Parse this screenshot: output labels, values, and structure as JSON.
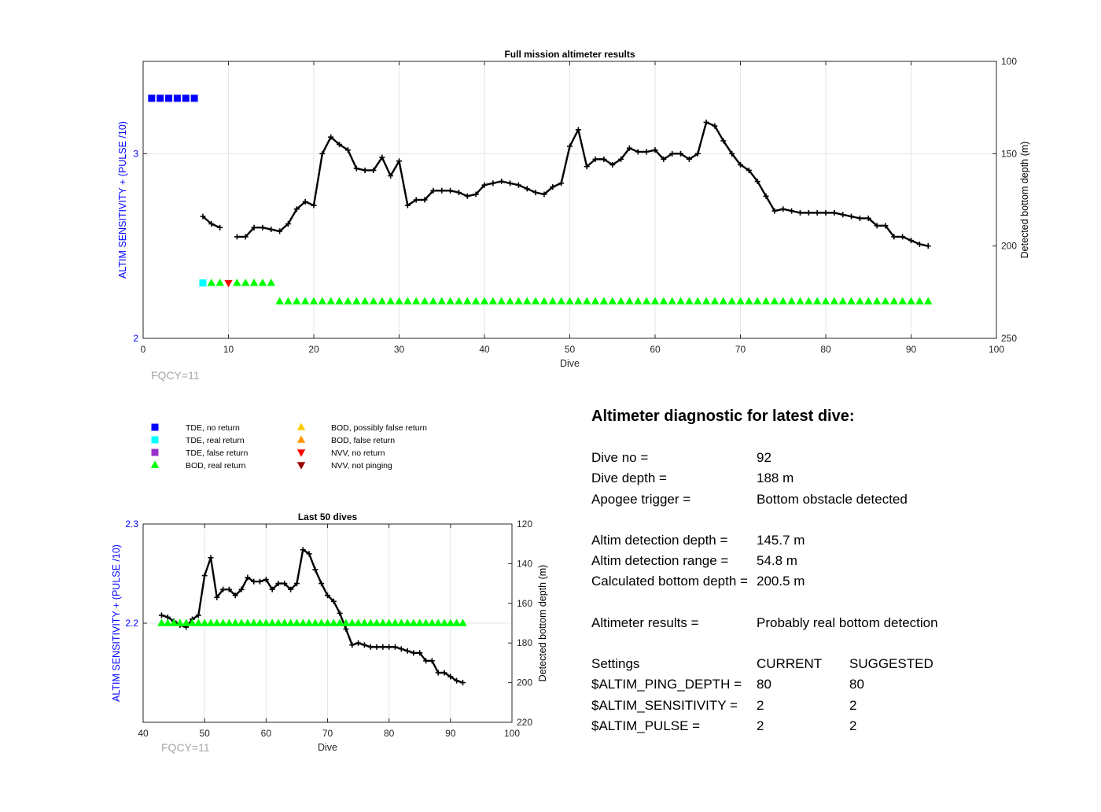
{
  "chart_data": [
    {
      "type": "line",
      "title": "Full mission altimeter results",
      "xlabel": "Dive",
      "ylabel_left": "ALTIM SENSITIVITY + (PULSE /10)",
      "ylabel_right": "Detected bottom depth (m)",
      "xlim": [
        0,
        100
      ],
      "ylim_left": [
        2,
        3.5
      ],
      "ylim_right_reversed": [
        100,
        250
      ],
      "xticks": [
        "0",
        "10",
        "20",
        "30",
        "40",
        "50",
        "60",
        "70",
        "80",
        "90",
        "100"
      ],
      "yticks_left": [
        "2",
        "3"
      ],
      "yticks_right": [
        "100",
        "150",
        "200",
        "250"
      ],
      "grid": true,
      "annotation": "FQCY=11",
      "series": [
        {
          "kind": "depth-line",
          "x": [
            7,
            8,
            9,
            11,
            12,
            13,
            14,
            15,
            16,
            17,
            18,
            19,
            20,
            21,
            22,
            23,
            24,
            25,
            26,
            27,
            28,
            29,
            30,
            31,
            32,
            33,
            34,
            35,
            36,
            37,
            38,
            39,
            40,
            41,
            42,
            43,
            44,
            45,
            46,
            47,
            48,
            49,
            50,
            51,
            52,
            53,
            54,
            55,
            56,
            57,
            58,
            59,
            60,
            61,
            62,
            63,
            64,
            65,
            66,
            67,
            68,
            69,
            70,
            71,
            72,
            73,
            74,
            75,
            76,
            77,
            78,
            79,
            80,
            81,
            82,
            83,
            84,
            85,
            86,
            87,
            88,
            89,
            90,
            91,
            92
          ],
          "y": [
            184,
            188,
            190,
            195,
            195,
            190,
            190,
            191,
            192,
            188,
            180,
            176,
            178,
            150,
            141,
            145,
            148,
            158,
            159,
            159,
            152,
            162,
            154,
            178,
            175,
            175,
            170,
            170,
            170,
            171,
            173,
            172,
            167,
            166,
            165,
            166,
            167,
            169,
            171,
            172,
            168,
            166,
            146,
            137,
            157,
            153,
            153,
            156,
            153,
            147,
            149,
            149,
            148,
            153,
            150,
            150,
            153,
            150,
            133,
            135,
            143,
            150,
            156,
            159,
            165,
            173,
            181,
            180,
            181,
            182,
            182,
            182,
            182,
            182,
            183,
            184,
            185,
            185,
            189,
            189,
            195,
            195,
            197,
            199,
            200
          ]
        },
        {
          "kind": "tde-no-return",
          "x": [
            1,
            2,
            3,
            4,
            5,
            6
          ],
          "y": [
            3.3,
            3.3,
            3.3,
            3.3,
            3.3,
            3.3
          ]
        },
        {
          "kind": "tde-real-return",
          "x": [
            7
          ],
          "y": [
            2.3
          ]
        },
        {
          "kind": "bod-real-return",
          "x": [
            8,
            9,
            11,
            12,
            13,
            14,
            15
          ],
          "y": [
            2.3,
            2.3,
            2.3,
            2.3,
            2.3,
            2.3,
            2.3
          ]
        },
        {
          "kind": "nvv-no-return",
          "x": [
            10
          ],
          "y": [
            2.3
          ]
        },
        {
          "kind": "bod-real-return",
          "x_range": [
            16,
            92
          ],
          "y": 2.2
        }
      ]
    },
    {
      "type": "line",
      "title": "Last 50 dives",
      "xlabel": "Dive",
      "ylabel_left": "ALTIM SENSITIVITY + (PULSE /10)",
      "ylabel_right": "Detected bottom depth (m)",
      "xlim": [
        40,
        100
      ],
      "ylim_left": [
        2.1,
        2.3
      ],
      "ylim_right_reversed": [
        120,
        220
      ],
      "xticks": [
        "40",
        "50",
        "60",
        "70",
        "80",
        "90",
        "100"
      ],
      "yticks_left": [
        "2.2",
        "2.3"
      ],
      "yticks_right": [
        "120",
        "140",
        "160",
        "180",
        "200",
        "220"
      ],
      "grid": true,
      "annotation": "FQCY=11",
      "series": [
        {
          "kind": "depth-line",
          "x": [
            43,
            44,
            45,
            46,
            47,
            48,
            49,
            50,
            51,
            52,
            53,
            54,
            55,
            56,
            57,
            58,
            59,
            60,
            61,
            62,
            63,
            64,
            65,
            66,
            67,
            68,
            69,
            70,
            71,
            72,
            73,
            74,
            75,
            76,
            77,
            78,
            79,
            80,
            81,
            82,
            83,
            84,
            85,
            86,
            87,
            88,
            89,
            90,
            91,
            92
          ],
          "y": [
            166,
            167,
            169,
            171,
            172,
            168,
            166,
            146,
            137,
            157,
            153,
            153,
            156,
            153,
            147,
            149,
            149,
            148,
            153,
            150,
            150,
            153,
            150,
            133,
            135,
            143,
            150,
            156,
            159,
            165,
            173,
            181,
            180,
            181,
            182,
            182,
            182,
            182,
            182,
            183,
            184,
            185,
            185,
            189,
            189,
            195,
            195,
            197,
            199,
            200
          ]
        },
        {
          "kind": "bod-real-return",
          "x_range": [
            43,
            92
          ],
          "y": 2.2
        }
      ]
    }
  ],
  "legend": [
    {
      "label": "TDE, no return",
      "marker": "square",
      "color": "#0000ff"
    },
    {
      "label": "TDE, real return",
      "marker": "square",
      "color": "#00ffff"
    },
    {
      "label": "TDE, false return",
      "marker": "square",
      "color": "#9933cc"
    },
    {
      "label": "BOD, real return",
      "marker": "triangle-up",
      "color": "#00ff00"
    },
    {
      "label": "BOD, possibly false return",
      "marker": "triangle-up",
      "color": "#ffcc00"
    },
    {
      "label": "BOD, false return",
      "marker": "triangle-up",
      "color": "#ff9900"
    },
    {
      "label": "NVV, no return",
      "marker": "triangle-down",
      "color": "#ff0000"
    },
    {
      "label": "NVV, not pinging",
      "marker": "triangle-down",
      "color": "#990000"
    }
  ],
  "diagnostic": {
    "title": "Altimeter diagnostic for latest dive:",
    "dive_no_label": "Dive no =",
    "dive_no": "92",
    "dive_depth_label": "Dive depth =",
    "dive_depth": "188 m",
    "apogee_label": "Apogee trigger =",
    "apogee": "Bottom obstacle detected",
    "detect_depth_label": "Altim detection depth =",
    "detect_depth": "145.7 m",
    "detect_range_label": "Altim detection range =",
    "detect_range": "54.8 m",
    "calc_depth_label": "Calculated bottom depth =",
    "calc_depth": "200.5 m",
    "results_label": "Altimeter results =",
    "results": "Probably real bottom detection",
    "settings_label": "Settings",
    "current_label": "CURRENT",
    "suggested_label": "SUGGESTED",
    "settings": [
      {
        "name": "$ALTIM_PING_DEPTH =",
        "current": "80",
        "suggested": "80"
      },
      {
        "name": "$ALTIM_SENSITIVITY =",
        "current": "2",
        "suggested": "2"
      },
      {
        "name": "$ALTIM_PULSE =",
        "current": "2",
        "suggested": "2"
      }
    ]
  },
  "colors": {
    "left_axis": "#0000ff",
    "fqcy": "#a6a6a6",
    "grid": "#e6e6e6",
    "line": "#000000"
  }
}
